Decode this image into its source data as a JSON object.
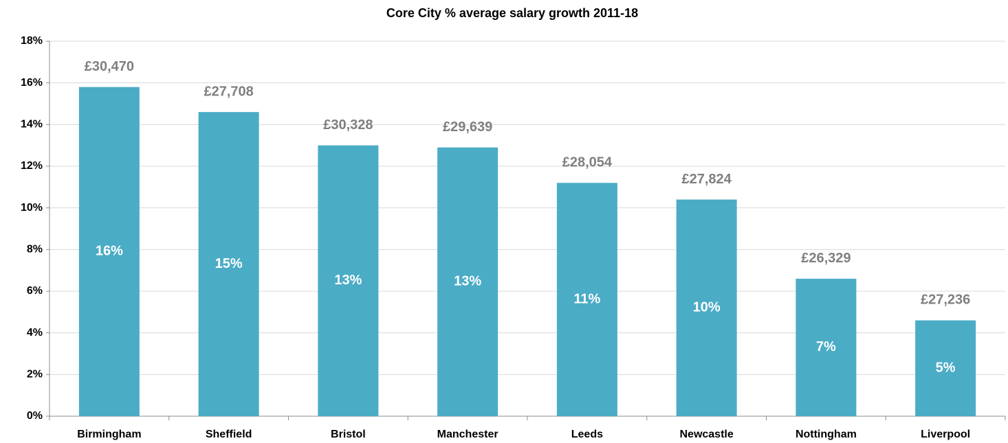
{
  "chart_data": {
    "type": "bar",
    "title": "Core City % average salary growth 2011-18",
    "categories": [
      "Birmingham",
      "Sheffield",
      "Bristol",
      "Manchester",
      "Leeds",
      "Newcastle",
      "Nottingham",
      "Liverpool"
    ],
    "values": [
      15.8,
      14.6,
      13.0,
      12.9,
      11.2,
      10.4,
      6.6,
      4.6
    ],
    "value_labels": [
      "16%",
      "15%",
      "13%",
      "13%",
      "11%",
      "10%",
      "7%",
      "5%"
    ],
    "salary_labels": [
      "£30,470",
      "£27,708",
      "£30,328",
      "£29,639",
      "£28,054",
      "£27,824",
      "£26,329",
      "£27,236"
    ],
    "color": "#4bacc6",
    "ylim": [
      0,
      18
    ],
    "yticks": [
      {
        "value": 0,
        "label": "0%"
      },
      {
        "value": 2,
        "label": "2%"
      },
      {
        "value": 4,
        "label": "4%"
      },
      {
        "value": 6,
        "label": "6%"
      },
      {
        "value": 8,
        "label": "8%"
      },
      {
        "value": 10,
        "label": "10%"
      },
      {
        "value": 12,
        "label": "12%"
      },
      {
        "value": 14,
        "label": "14%"
      },
      {
        "value": 16,
        "label": "16%"
      },
      {
        "value": 18,
        "label": "18%"
      }
    ],
    "grid": true
  }
}
